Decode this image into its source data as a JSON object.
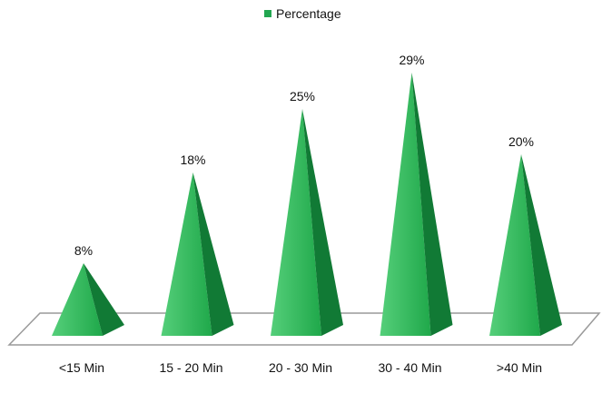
{
  "chart_data": {
    "type": "bar",
    "categories": [
      "<15 Min",
      "15  - 20 Min",
      "20  - 30 Min",
      "30  - 40 Min",
      ">40 Min"
    ],
    "series": [
      {
        "name": "Percentage",
        "values": [
          8,
          18,
          25,
          29,
          20
        ],
        "labels": [
          "8%",
          "18%",
          "25%",
          "29%",
          "20%"
        ]
      }
    ],
    "title": "",
    "xlabel": "",
    "ylabel": "",
    "ylim": [
      0,
      30
    ],
    "legend_position": "top-center",
    "grid": false,
    "mark_shape": "pyramid",
    "colors": {
      "front": "#2fb85a",
      "side": "#117a35",
      "legend": "#22a650",
      "floor_stroke": "#9a9a9a",
      "floor_fill": "#ffffff"
    }
  }
}
